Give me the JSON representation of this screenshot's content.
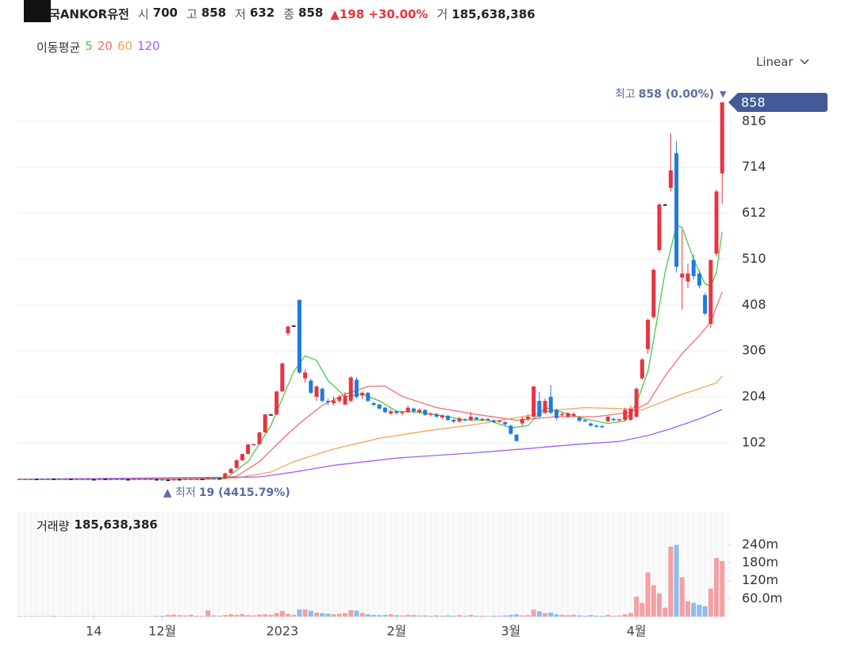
{
  "header": {
    "name": "국ANKOR유전",
    "items": [
      {
        "label": "시",
        "value": 700
      },
      {
        "label": "고",
        "value": 858
      },
      {
        "label": "저",
        "value": 632
      },
      {
        "label": "종",
        "value": 858
      }
    ],
    "change": 198,
    "change_pct": "+30.00%",
    "volume_label": "거",
    "volume": "185,638,386"
  },
  "ma_title": "이동평균",
  "scale_button": "Linear",
  "chart_data": {
    "type": "candlestick",
    "xlim": [
      -0.5,
      124.5
    ],
    "xticks": [
      {
        "value": 13,
        "label": "14"
      },
      {
        "value": 25,
        "label": "12월"
      },
      {
        "value": 46,
        "label": "2023"
      },
      {
        "value": 66,
        "label": "2월"
      },
      {
        "value": 86,
        "label": "3월"
      },
      {
        "value": 108,
        "label": "4월"
      }
    ],
    "ylim": [
      19,
      909
    ],
    "yticks": [
      102,
      204,
      306,
      408,
      510,
      612,
      714,
      816
    ],
    "grid": true,
    "up_color": "#e8343f",
    "down_color": "#1e7be0",
    "flat_color": "#111111",
    "candles": [
      [
        21,
        22,
        21,
        22
      ],
      [
        22,
        22,
        21,
        21
      ],
      [
        21,
        22,
        21,
        22
      ],
      [
        22,
        22,
        21,
        22
      ],
      [
        22,
        22,
        21,
        21
      ],
      [
        21,
        22,
        21,
        22
      ],
      [
        22,
        23,
        21,
        22
      ],
      [
        22,
        22,
        21,
        21
      ],
      [
        21,
        22,
        21,
        22
      ],
      [
        22,
        22,
        21,
        22
      ],
      [
        22,
        22,
        21,
        21
      ],
      [
        21,
        22,
        21,
        22
      ],
      [
        22,
        22,
        21,
        21
      ],
      [
        21,
        22,
        21,
        21
      ],
      [
        21,
        22,
        21,
        22
      ],
      [
        22,
        22,
        21,
        22
      ],
      [
        22,
        22,
        21,
        21
      ],
      [
        21,
        22,
        21,
        22
      ],
      [
        22,
        22,
        21,
        21
      ],
      [
        21,
        22,
        21,
        21
      ],
      [
        21,
        22,
        21,
        22
      ],
      [
        22,
        22,
        21,
        21
      ],
      [
        21,
        22,
        21,
        22
      ],
      [
        22,
        22,
        21,
        21
      ],
      [
        21,
        22,
        20,
        21
      ],
      [
        21,
        21,
        20,
        20
      ],
      [
        20,
        21,
        19,
        20
      ],
      [
        20,
        22,
        20,
        21
      ],
      [
        21,
        22,
        20,
        21
      ],
      [
        21,
        22,
        21,
        22
      ],
      [
        22,
        22,
        21,
        21
      ],
      [
        21,
        22,
        21,
        22
      ],
      [
        22,
        22,
        21,
        22
      ],
      [
        22,
        25,
        22,
        24
      ],
      [
        24,
        24,
        22,
        23
      ],
      [
        23,
        24,
        22,
        23
      ],
      [
        23,
        36,
        23,
        34
      ],
      [
        35,
        46,
        34,
        44
      ],
      [
        46,
        66,
        45,
        63
      ],
      [
        63,
        78,
        62,
        77
      ],
      [
        77,
        100,
        77,
        98
      ],
      [
        98,
        100,
        97,
        99
      ],
      [
        99,
        126,
        98,
        125
      ],
      [
        125,
        165,
        124,
        165
      ],
      [
        165,
        166,
        164,
        165
      ],
      [
        165,
        217,
        164,
        216
      ],
      [
        216,
        280,
        215,
        278
      ],
      [
        345,
        362,
        340,
        360
      ],
      [
        362,
        364,
        360,
        362
      ],
      [
        419,
        421,
        255,
        258
      ],
      [
        245,
        265,
        235,
        258
      ],
      [
        240,
        245,
        210,
        213
      ],
      [
        204,
        230,
        195,
        227
      ],
      [
        222,
        225,
        192,
        195
      ],
      [
        195,
        200,
        185,
        192
      ],
      [
        190,
        205,
        185,
        196
      ],
      [
        195,
        208,
        190,
        204
      ],
      [
        187,
        215,
        185,
        206
      ],
      [
        195,
        250,
        192,
        247
      ],
      [
        242,
        248,
        200,
        204
      ],
      [
        207,
        216,
        200,
        213
      ],
      [
        213,
        215,
        192,
        195
      ],
      [
        190,
        192,
        184,
        186
      ],
      [
        187,
        188,
        176,
        178
      ],
      [
        180,
        182,
        168,
        170
      ],
      [
        167,
        176,
        164,
        172
      ],
      [
        172,
        174,
        165,
        168
      ],
      [
        168,
        172,
        163,
        170
      ],
      [
        170,
        185,
        168,
        180
      ],
      [
        178,
        180,
        168,
        172
      ],
      [
        170,
        178,
        166,
        175
      ],
      [
        175,
        177,
        162,
        164
      ],
      [
        164,
        170,
        160,
        167
      ],
      [
        166,
        168,
        158,
        160
      ],
      [
        158,
        165,
        155,
        163
      ],
      [
        162,
        164,
        150,
        153
      ],
      [
        153,
        156,
        146,
        149
      ],
      [
        149,
        160,
        147,
        156
      ],
      [
        154,
        157,
        150,
        152
      ],
      [
        152,
        170,
        150,
        160
      ],
      [
        158,
        160,
        152,
        154
      ],
      [
        154,
        158,
        150,
        155
      ],
      [
        155,
        157,
        150,
        152
      ],
      [
        152,
        154,
        146,
        148
      ],
      [
        150,
        153,
        147,
        151
      ],
      [
        148,
        150,
        140,
        143
      ],
      [
        140,
        142,
        120,
        122
      ],
      [
        120,
        121,
        104,
        106
      ],
      [
        145,
        160,
        140,
        155
      ],
      [
        155,
        165,
        150,
        160
      ],
      [
        160,
        228,
        158,
        227
      ],
      [
        195,
        215,
        158,
        160
      ],
      [
        169,
        200,
        165,
        195
      ],
      [
        204,
        230,
        165,
        169
      ],
      [
        175,
        178,
        152,
        157
      ],
      [
        165,
        170,
        160,
        166
      ],
      [
        160,
        170,
        158,
        168
      ],
      [
        162,
        170,
        160,
        166
      ],
      [
        158,
        160,
        148,
        151
      ],
      [
        152,
        155,
        148,
        150
      ],
      [
        145,
        147,
        138,
        140
      ],
      [
        140,
        143,
        136,
        139
      ],
      [
        139,
        142,
        136,
        137
      ],
      [
        150,
        162,
        147,
        160
      ],
      [
        155,
        158,
        150,
        152
      ],
      [
        152,
        156,
        150,
        154
      ],
      [
        153,
        180,
        150,
        175
      ],
      [
        153,
        185,
        150,
        178
      ],
      [
        160,
        225,
        158,
        222
      ],
      [
        245,
        290,
        243,
        287
      ],
      [
        310,
        378,
        300,
        375
      ],
      [
        381,
        490,
        378,
        486
      ],
      [
        530,
        634,
        525,
        631
      ],
      [
        631,
        633,
        630,
        631
      ],
      [
        668,
        790,
        660,
        707
      ],
      [
        745,
        772,
        480,
        493
      ],
      [
        469,
        574,
        398,
        478
      ],
      [
        460,
        500,
        445,
        478
      ],
      [
        508,
        520,
        465,
        472
      ],
      [
        478,
        485,
        445,
        451
      ],
      [
        430,
        435,
        385,
        389
      ],
      [
        366,
        508,
        357,
        508
      ],
      [
        522,
        664,
        515,
        660
      ],
      [
        700,
        858,
        632,
        858
      ]
    ],
    "ma_series": [
      {
        "name": "5",
        "color": "#4cc94c",
        "x": [
          0,
          36,
          40,
          44,
          46,
          48,
          50,
          52,
          54,
          57,
          60,
          63,
          66,
          70,
          74,
          78,
          82,
          86,
          89,
          92,
          95,
          99,
          103,
          106,
          108,
          110,
          111,
          113,
          115,
          116,
          118,
          120,
          121,
          122,
          123
        ],
        "values": [
          21,
          22,
          60,
          140,
          200,
          260,
          295,
          285,
          240,
          205,
          210,
          195,
          172,
          170,
          162,
          153,
          152,
          135,
          140,
          180,
          170,
          155,
          145,
          150,
          190,
          260,
          330,
          480,
          585,
          580,
          510,
          455,
          450,
          480,
          571
        ]
      },
      {
        "name": "20",
        "color": "#f07070",
        "x": [
          0,
          34,
          38,
          42,
          46,
          49,
          53,
          57,
          61,
          64,
          67,
          73,
          80,
          87,
          94,
          101,
          107,
          110,
          113,
          116,
          119,
          121,
          123
        ],
        "values": [
          21,
          21,
          28,
          60,
          110,
          145,
          185,
          210,
          227,
          228,
          205,
          180,
          165,
          152,
          160,
          160,
          170,
          190,
          250,
          300,
          340,
          370,
          437
        ]
      },
      {
        "name": "60",
        "color": "#f5a35a",
        "x": [
          0,
          38,
          44,
          48,
          55,
          63,
          71,
          80,
          88,
          94,
          99,
          105,
          109,
          113,
          116,
          119,
          122,
          123
        ],
        "values": [
          21,
          24,
          37,
          60,
          88,
          112,
          128,
          143,
          160,
          175,
          180,
          178,
          175,
          195,
          210,
          222,
          235,
          250
        ]
      },
      {
        "name": "120",
        "color": "#a45ef0",
        "x": [
          0,
          42,
          48,
          55,
          66,
          80,
          88,
          97,
          105,
          110,
          114,
          119,
          123
        ],
        "values": [
          21,
          26,
          37,
          52,
          68,
          80,
          88,
          98,
          105,
          118,
          133,
          155,
          176
        ]
      }
    ],
    "annotations": {
      "high": {
        "label": "최고",
        "text": "858 (0.00%)"
      },
      "low": {
        "label": "최저",
        "text": "19 (4415.79%)"
      }
    },
    "volume": {
      "title": "거래량",
      "total": "185,638,386",
      "ylim": [
        0,
        350000000
      ],
      "yticks": [
        {
          "value": 60000000,
          "label": "60.0m"
        },
        {
          "value": 120000000,
          "label": "120m"
        },
        {
          "value": 180000000,
          "label": "180m"
        },
        {
          "value": 240000000,
          "label": "240m"
        }
      ],
      "up_color": "#f3a0a5",
      "down_color": "#8dbdf0",
      "values": [
        1500000,
        1200000,
        2000000,
        1800000,
        1300000,
        1600000,
        2200000,
        1400000,
        1200000,
        1900000,
        1500000,
        1100000,
        1300000,
        1600000,
        1200000,
        1000000,
        1400000,
        1700000,
        1300000,
        1200000,
        1500000,
        1100000,
        1000000,
        1300000,
        2500000,
        3000000,
        6000000,
        7000000,
        5000000,
        4000000,
        6000000,
        3000000,
        2000000,
        21000000,
        4000000,
        3000000,
        5000000,
        8000000,
        6000000,
        9000000,
        5000000,
        4000000,
        7000000,
        8000000,
        6000000,
        12000000,
        19000000,
        9000000,
        6000000,
        24000000,
        24000000,
        20000000,
        14000000,
        12000000,
        10000000,
        8000000,
        10000000,
        12000000,
        22000000,
        20000000,
        12000000,
        8000000,
        6000000,
        5000000,
        6000000,
        8000000,
        5000000,
        4000000,
        6000000,
        5000000,
        4000000,
        4000000,
        3000000,
        4000000,
        3000000,
        4000000,
        3000000,
        5000000,
        3000000,
        6000000,
        3000000,
        3000000,
        2000000,
        3000000,
        3000000,
        4000000,
        6000000,
        8000000,
        4000000,
        5000000,
        24000000,
        18000000,
        12000000,
        14000000,
        8000000,
        6000000,
        5000000,
        6000000,
        4000000,
        3000000,
        5000000,
        3000000,
        3000000,
        6000000,
        3000000,
        4000000,
        8000000,
        12000000,
        67000000,
        46000000,
        148000000,
        105000000,
        78000000,
        30000000,
        234000000,
        240000000,
        132000000,
        51000000,
        46000000,
        40000000,
        35000000,
        94000000,
        196000000,
        185638386
      ]
    }
  }
}
